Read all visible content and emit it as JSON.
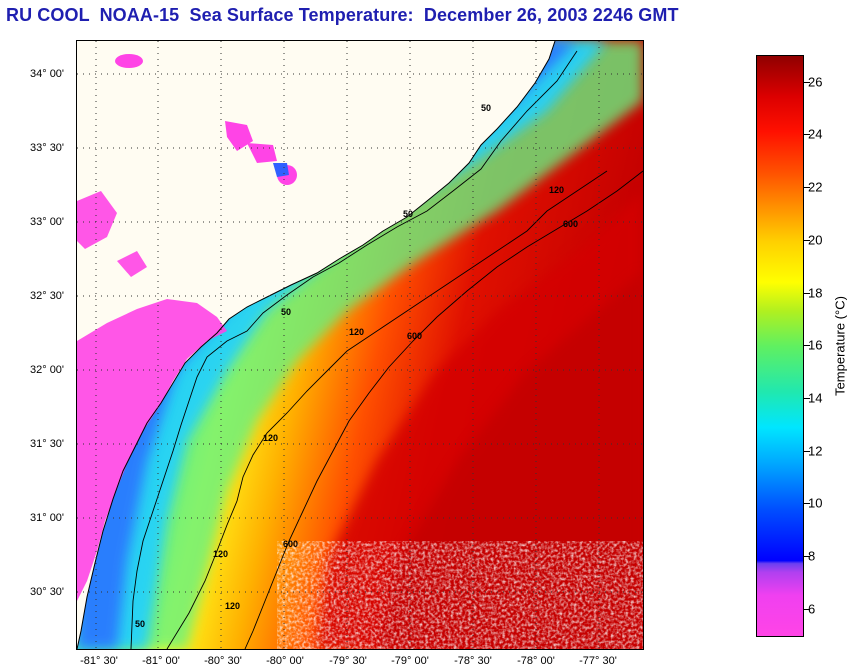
{
  "title": "RU COOL  NOAA-15  Sea Surface Temperature:  December 26, 2003 2246 GMT",
  "map": {
    "latitude_labels": [
      "34° 00'",
      "33° 30'",
      "33° 00'",
      "32° 30'",
      "32° 00'",
      "31° 30'",
      "31° 00'",
      "30° 30'"
    ],
    "longitude_labels": [
      "-81° 30'",
      "-81° 00'",
      "-80° 30'",
      "-80° 00'",
      "-79° 30'",
      "-79° 00'",
      "-78° 30'",
      "-78° 00'",
      "-77° 30'"
    ],
    "isobath_labels": [
      "50",
      "120",
      "600"
    ],
    "colors": {
      "land": "#fffcf2",
      "cloud": "#ff40e0",
      "cold_water": "#2a7cff",
      "warm_water": "#dc0000",
      "contour": "#000000"
    }
  },
  "colorbar": {
    "title": "Temperature (°C)",
    "tick_labels": [
      "26",
      "24",
      "22",
      "20",
      "18",
      "16",
      "14",
      "12",
      "10",
      "8",
      "6"
    ]
  }
}
